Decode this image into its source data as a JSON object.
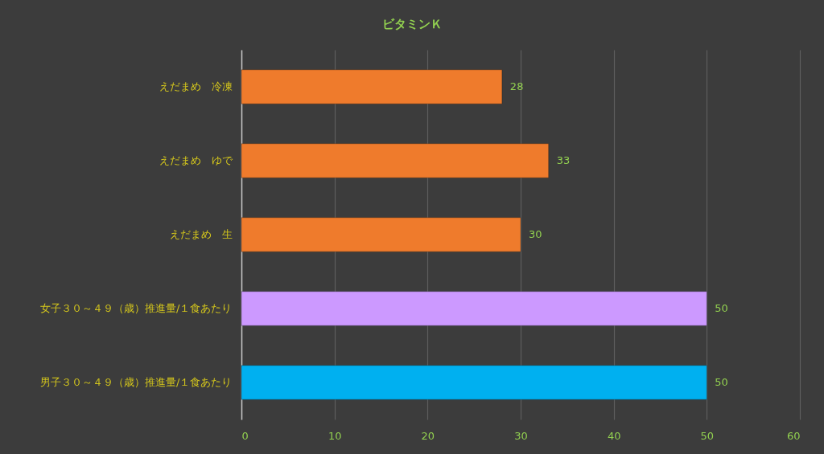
{
  "chart_data": {
    "type": "bar",
    "title": "ビタミンＫ",
    "orientation": "horizontal",
    "categories": [
      "えだまめ　冷凍",
      "えだまめ　ゆで",
      "えだまめ　生",
      "女子３０～４９（歳）推進量/１食あたり",
      "男子３０～４９（歳）推進量/１食あたり"
    ],
    "values": [
      28,
      33,
      30,
      50,
      50
    ],
    "colors": [
      "#ef7b2c",
      "#ef7b2c",
      "#ef7b2c",
      "#cc99ff",
      "#00b0f0"
    ],
    "xlim": [
      0,
      60
    ],
    "xticks": [
      0,
      10,
      20,
      30,
      40,
      50,
      60
    ],
    "grid": "x",
    "data_labels": true
  }
}
